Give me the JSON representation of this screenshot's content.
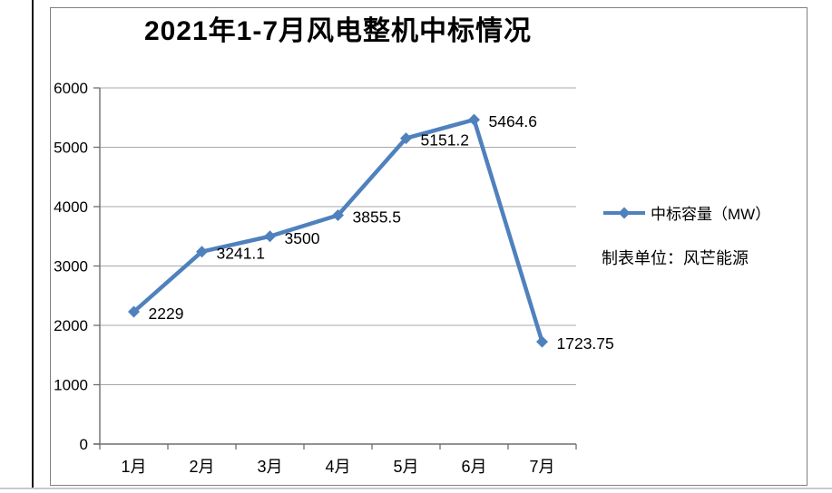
{
  "chart_data": {
    "type": "line",
    "title": "2021年1-7月风电整机中标情况",
    "categories": [
      "1月",
      "2月",
      "3月",
      "4月",
      "5月",
      "6月",
      "7月"
    ],
    "series": [
      {
        "name": "中标容量（MW）",
        "values": [
          2229,
          3241.1,
          3500,
          3855.5,
          5151.2,
          5464.6,
          1723.75
        ]
      }
    ],
    "data_labels": [
      "2229",
      "3241.1",
      "3500",
      "3855.5",
      "5151.2",
      "5464.6",
      "1723.75"
    ],
    "yticks": [
      "0",
      "1000",
      "2000",
      "3000",
      "4000",
      "5000",
      "6000"
    ],
    "ylim": [
      0,
      6000
    ],
    "xlabel": "",
    "ylabel": "",
    "grid": "horizontal",
    "legend_position": "right",
    "marker": "diamond",
    "source_note": "制表单位：风芒能源",
    "colors": {
      "line": "#4F81BD",
      "gridline": "#A8A8A8",
      "axis": "#6e6e6e",
      "text": "#000000",
      "frame_border": "#808080"
    }
  }
}
